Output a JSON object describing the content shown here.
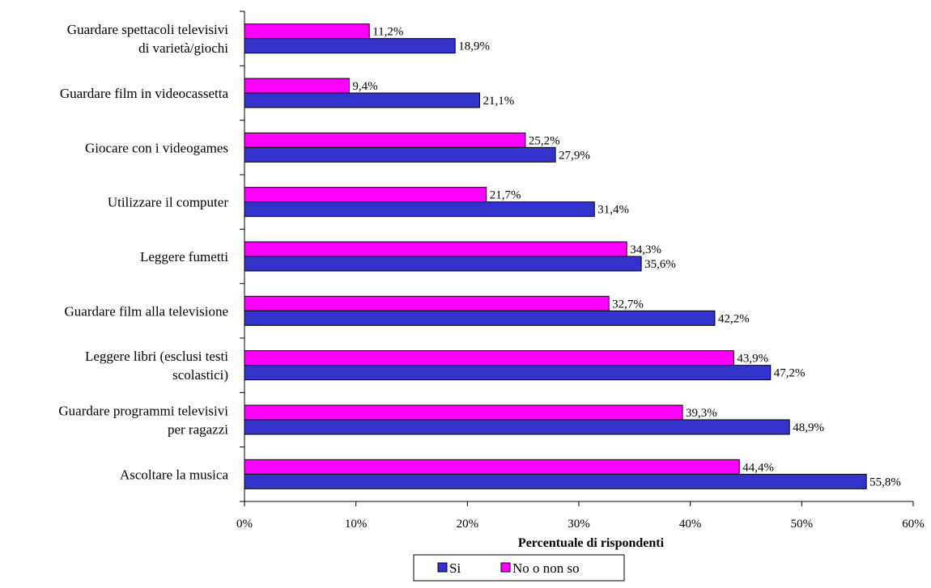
{
  "chart_data": {
    "type": "bar",
    "orientation": "horizontal",
    "categories": [
      [
        "Guardare spettacoli televisivi",
        "di varietà/giochi"
      ],
      [
        "Guardare film in videocassetta"
      ],
      [
        "Giocare con i videogames"
      ],
      [
        "Utilizzare il computer"
      ],
      [
        "Leggere fumetti"
      ],
      [
        "Guardare film alla televisione"
      ],
      [
        "Leggere libri (esclusi testi",
        "scolastici)"
      ],
      [
        "Guardare programmi televisivi",
        "per ragazzi"
      ],
      [
        "Ascoltare la musica"
      ]
    ],
    "series": [
      {
        "name": "No o non so",
        "color": "#ff00ff",
        "values": [
          11.2,
          9.4,
          25.2,
          21.7,
          34.3,
          32.7,
          43.9,
          39.3,
          44.4
        ],
        "labels": [
          "11,2%",
          "9,4%",
          "25,2%",
          "21,7%",
          "34,3%",
          "32,7%",
          "43,9%",
          "39,3%",
          "44,4%"
        ]
      },
      {
        "name": "Si",
        "color": "#3333cc",
        "values": [
          18.9,
          21.1,
          27.9,
          31.4,
          35.6,
          42.2,
          47.2,
          48.9,
          55.8
        ],
        "labels": [
          "18,9%",
          "21,1%",
          "27,9%",
          "31,4%",
          "35,6%",
          "42,2%",
          "47,2%",
          "48,9%",
          "55,8%"
        ]
      }
    ],
    "xlim": [
      0,
      60
    ],
    "xticks": [
      "0%",
      "10%",
      "20%",
      "30%",
      "40%",
      "50%",
      "60%"
    ],
    "xlabel": "Percentuale di rispondenti",
    "ylabel": "",
    "grid": false,
    "legend": {
      "placement": "bottom",
      "entries": [
        {
          "name": "Si",
          "color": "#3333cc"
        },
        {
          "name": "No o non so",
          "color": "#ff00ff"
        }
      ]
    }
  }
}
